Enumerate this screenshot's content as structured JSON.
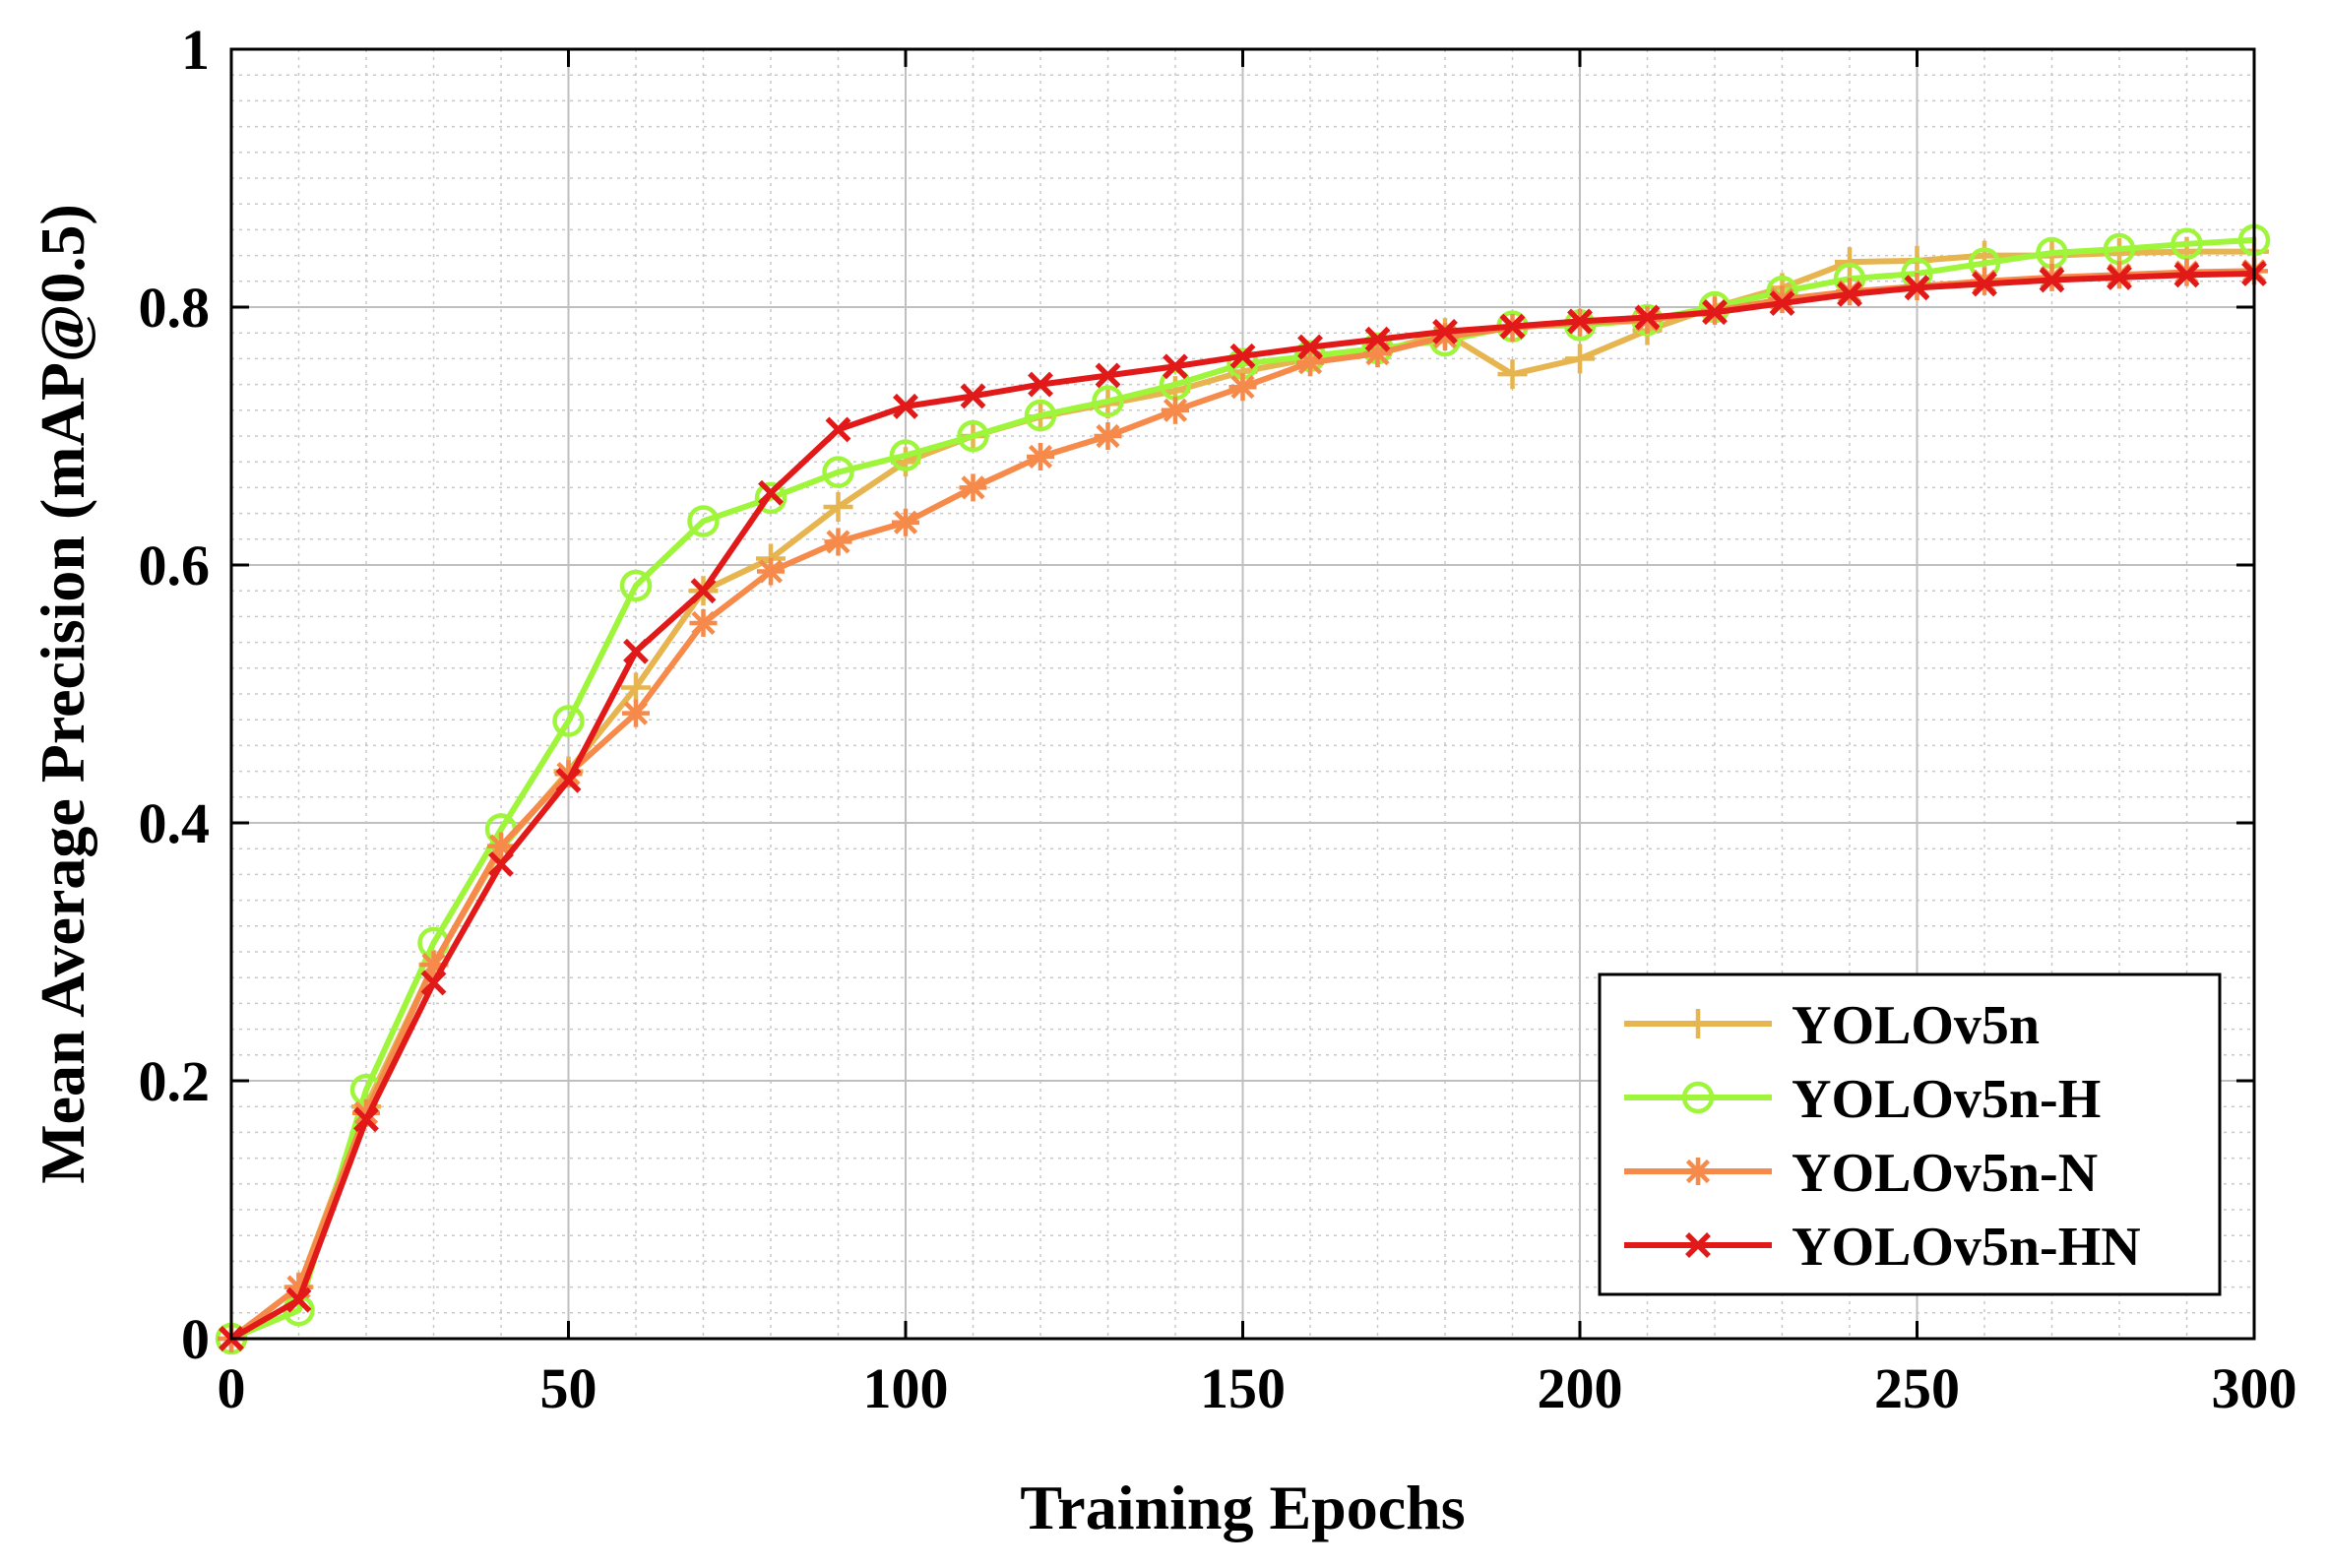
{
  "chart_data": {
    "type": "line",
    "title": "",
    "xlabel": "Training Epochs",
    "ylabel": "Mean Average Precision (mAP@0.5)",
    "xlim": [
      0,
      300
    ],
    "ylim": [
      0,
      1
    ],
    "xticks": [
      0,
      50,
      100,
      150,
      200,
      250,
      300
    ],
    "yticks": [
      0,
      0.2,
      0.4,
      0.6,
      0.8,
      1
    ],
    "xtick_labels": [
      "0",
      "50",
      "100",
      "150",
      "200",
      "250",
      "300"
    ],
    "ytick_labels": [
      "0",
      "0.2",
      "0.4",
      "0.6",
      "0.8",
      "1"
    ],
    "grid": true,
    "minor_grid": true,
    "legend_position": "bottom-right",
    "x": [
      0,
      10,
      20,
      30,
      40,
      50,
      60,
      70,
      80,
      90,
      100,
      110,
      120,
      130,
      140,
      150,
      160,
      170,
      180,
      190,
      200,
      210,
      220,
      230,
      240,
      250,
      260,
      270,
      280,
      290,
      300
    ],
    "series": [
      {
        "name": "YOLOv5n",
        "color": "#E6B54F",
        "marker": "plus",
        "values": [
          0.0,
          0.04,
          0.18,
          0.29,
          0.38,
          0.44,
          0.505,
          0.58,
          0.605,
          0.645,
          0.68,
          0.7,
          0.715,
          0.725,
          0.735,
          0.75,
          0.76,
          0.765,
          0.78,
          0.748,
          0.76,
          0.782,
          0.8,
          0.815,
          0.835,
          0.836,
          0.84,
          0.84,
          0.842,
          0.843,
          0.843
        ]
      },
      {
        "name": "YOLOv5n-H",
        "color": "#9EF53A",
        "marker": "circle",
        "values": [
          0.0,
          0.022,
          0.193,
          0.307,
          0.395,
          0.479,
          0.584,
          0.634,
          0.652,
          0.672,
          0.685,
          0.7,
          0.716,
          0.727,
          0.74,
          0.756,
          0.762,
          0.768,
          0.774,
          0.785,
          0.786,
          0.79,
          0.8,
          0.812,
          0.822,
          0.826,
          0.834,
          0.842,
          0.845,
          0.849,
          0.852
        ]
      },
      {
        "name": "YOLOv5n-N",
        "color": "#F58A4A",
        "marker": "asterisk",
        "values": [
          0.0,
          0.04,
          0.175,
          0.29,
          0.382,
          0.438,
          0.485,
          0.555,
          0.595,
          0.618,
          0.633,
          0.66,
          0.684,
          0.7,
          0.72,
          0.738,
          0.757,
          0.764,
          0.777,
          0.784,
          0.788,
          0.79,
          0.797,
          0.806,
          0.812,
          0.816,
          0.82,
          0.823,
          0.825,
          0.827,
          0.828
        ]
      },
      {
        "name": "YOLOv5n-HN",
        "color": "#E11919",
        "marker": "x",
        "values": [
          0.0,
          0.03,
          0.17,
          0.276,
          0.368,
          0.433,
          0.533,
          0.58,
          0.656,
          0.705,
          0.723,
          0.731,
          0.74,
          0.747,
          0.754,
          0.762,
          0.769,
          0.775,
          0.781,
          0.785,
          0.789,
          0.792,
          0.796,
          0.803,
          0.81,
          0.815,
          0.818,
          0.821,
          0.823,
          0.825,
          0.826
        ]
      }
    ]
  }
}
